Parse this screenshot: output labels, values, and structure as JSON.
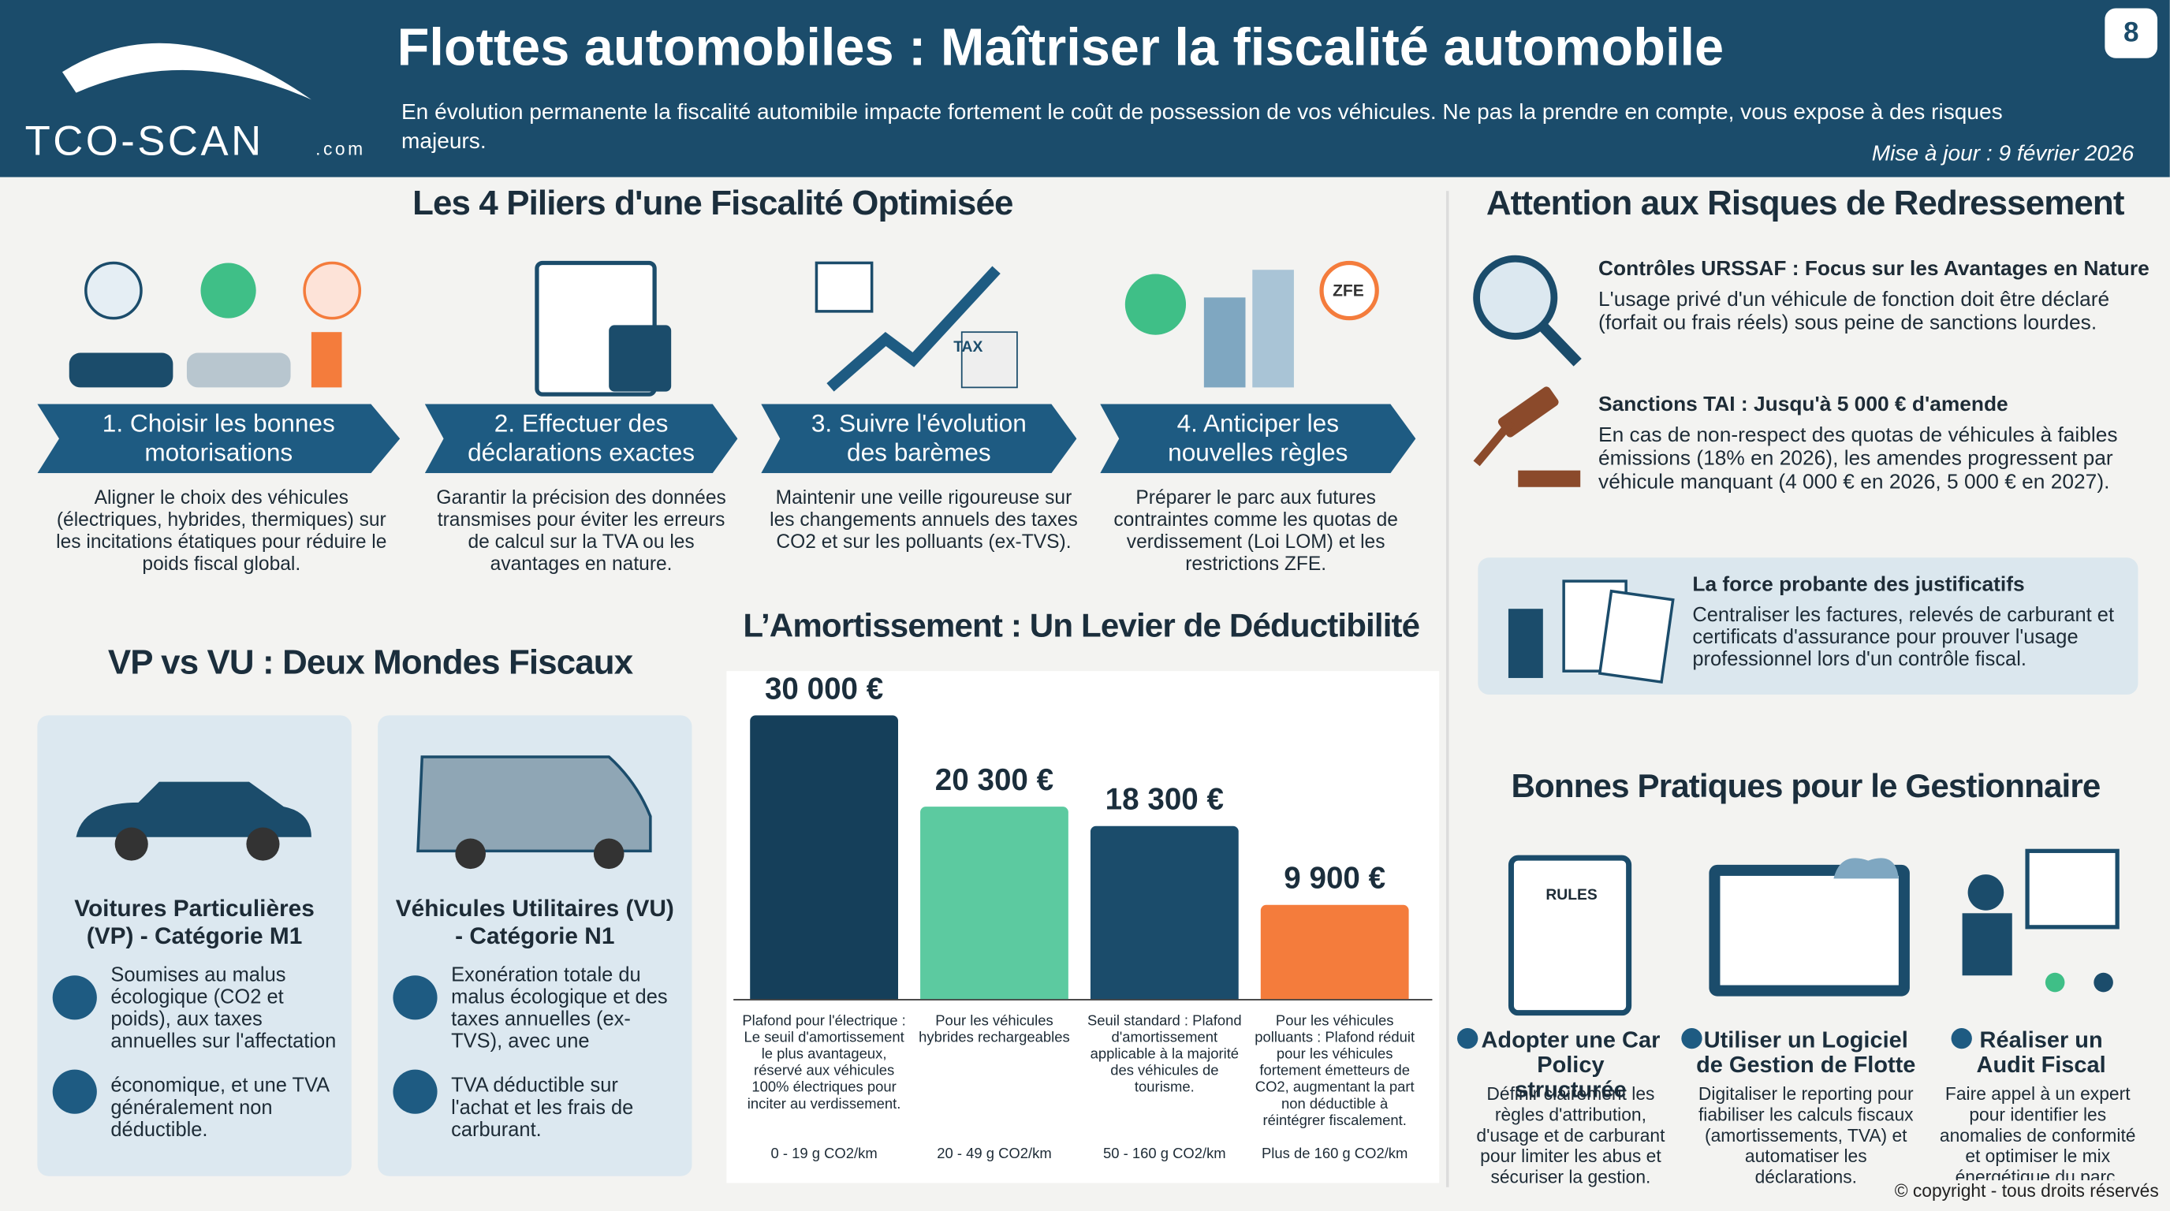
{
  "header": {
    "logo": "TCO-SCAN",
    "logo_suffix": ".com",
    "title": "Flottes automobiles : Maîtriser la fiscalité automobile",
    "subtitle": "En évolution permanente la fiscalité automibile impacte fortement le coût de possession de vos véhicules. Ne pas la prendre en compte, vous expose à des risques majeurs.",
    "update": "Mise à jour : 9 février 2026",
    "page": "8"
  },
  "pillars": {
    "title": "Les 4 Piliers d'une Fiscalité Optimisée",
    "items": [
      {
        "label": "1. Choisir les bonnes motorisations",
        "text": "Aligner le choix des véhicules (électriques, hybrides, thermiques) sur les incitations étatiques pour réduire le poids fiscal global."
      },
      {
        "label": "2. Effectuer des déclarations exactes",
        "text": "Garantir la précision des données transmises pour éviter les erreurs de calcul sur la TVA ou les avantages en nature."
      },
      {
        "label": "3. Suivre l'évolution des barèmes",
        "icon_text": "TAX",
        "text": "Maintenir une veille rigoureuse sur les changements annuels des taxes CO2 et sur les polluants (ex-TVS)."
      },
      {
        "label": "4. Anticiper les nouvelles règles",
        "icon_text": "ZFE",
        "text": "Préparer le parc aux futures contraintes comme les quotas de verdissement (Loi LOM) et les restrictions ZFE."
      }
    ]
  },
  "vp_vu": {
    "title": "VP vs VU : Deux Mondes Fiscaux",
    "cards": [
      {
        "title": "Voitures Particulières (VP) - Catégorie M1",
        "points": [
          "Soumises au malus écologique (CO2 et poids), aux taxes annuelles sur l'affectation",
          "économique, et une TVA généralement non déductible."
        ]
      },
      {
        "title": "Véhicules Utilitaires (VU) - Catégorie N1",
        "points": [
          "Exonération totale du malus écologique et des taxes annuelles (ex-TVS), avec une",
          "TVA déductible sur l'achat et les frais de carburant."
        ]
      }
    ]
  },
  "amortissement": {
    "title": "L’Amortissement : Un Levier de Déductibilité",
    "bars": [
      {
        "value": 30000,
        "value_label": "30 000 €",
        "color": "#153f5a",
        "text": "Plafond pour l'électrique : Le seuil d'amortissement le plus avantageux, réservé aux véhicules 100% électriques pour inciter au verdissement.",
        "range": "0 - 19 g CO2/km"
      },
      {
        "value": 20300,
        "value_label": "20 300 €",
        "color": "#5ccaa0",
        "text": "Pour les véhicules hybrides rechargeables",
        "range": "20 - 49 g CO2/km"
      },
      {
        "value": 18300,
        "value_label": "18 300 €",
        "color": "#1b4c6b",
        "text": "Seuil standard : Plafond d'amortissement applicable à la majorité des véhicules de tourisme.",
        "range": "50 - 160 g CO2/km"
      },
      {
        "value": 9900,
        "value_label": "9 900 €",
        "color": "#f47c3c",
        "text": "Pour les véhicules polluants : Plafond réduit pour les véhicules fortement émetteurs de CO2, augmentant la part non déductible à réintégrer fiscalement.",
        "range": "Plus de 160 g CO2/km"
      }
    ]
  },
  "risks": {
    "title": "Attention aux Risques de Redressement",
    "items": [
      {
        "title": "Contrôles URSSAF : Focus sur les Avantages en Nature",
        "text": "L'usage privé d'un véhicule de fonction doit être déclaré (forfait ou frais réels) sous peine de sanctions lourdes."
      },
      {
        "title": "Sanctions TAI  : Jusqu'à 5 000 € d'amende",
        "text": "En cas de non-respect des quotas de véhicules à faibles émissions (18% en 2026), les amendes progressent par véhicule manquant (4 000 € en 2026, 5 000 € en 2027)."
      },
      {
        "title": "La force probante des justificatifs",
        "text": "Centraliser les factures, relevés de carburant et certificats d'assurance pour prouver l'usage professionnel lors d'un contrôle fiscal."
      }
    ]
  },
  "practices": {
    "title": "Bonnes Pratiques pour le Gestionnaire",
    "items": [
      {
        "icon_text": "RULES",
        "title": "Adopter une Car Policy structurée",
        "text": "Définir clairement les règles d'attribution, d'usage et de carburant pour limiter les abus et sécuriser la gestion."
      },
      {
        "title": "Utiliser un Logiciel de Gestion de Flotte",
        "text": "Digitaliser le reporting pour fiabiliser les calculs fiscaux (amortissements, TVA) et automatiser les déclarations."
      },
      {
        "title": "Réaliser un Audit Fiscal",
        "text": "Faire appel à un expert pour identifier les anomalies de conformité et optimiser le mix énergétique du parc."
      }
    ]
  },
  "copyright": "© copyright - tous droits réservés"
}
